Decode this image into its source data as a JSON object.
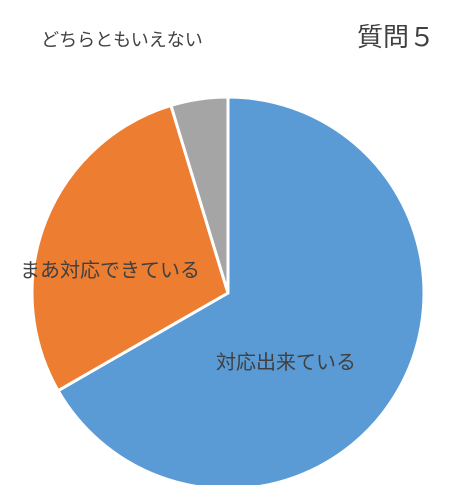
{
  "chart_data": {
    "type": "pie",
    "title": "質問５",
    "categories": [
      "対応出来ている",
      "まあ対応できている",
      "どちらともいえない"
    ],
    "values": [
      66.7,
      28.6,
      4.7
    ],
    "colors": [
      "#5B9BD5",
      "#ED7D31",
      "#A5A5A5"
    ],
    "start": "12 o'clock",
    "direction": "clockwise",
    "legend": "none"
  }
}
